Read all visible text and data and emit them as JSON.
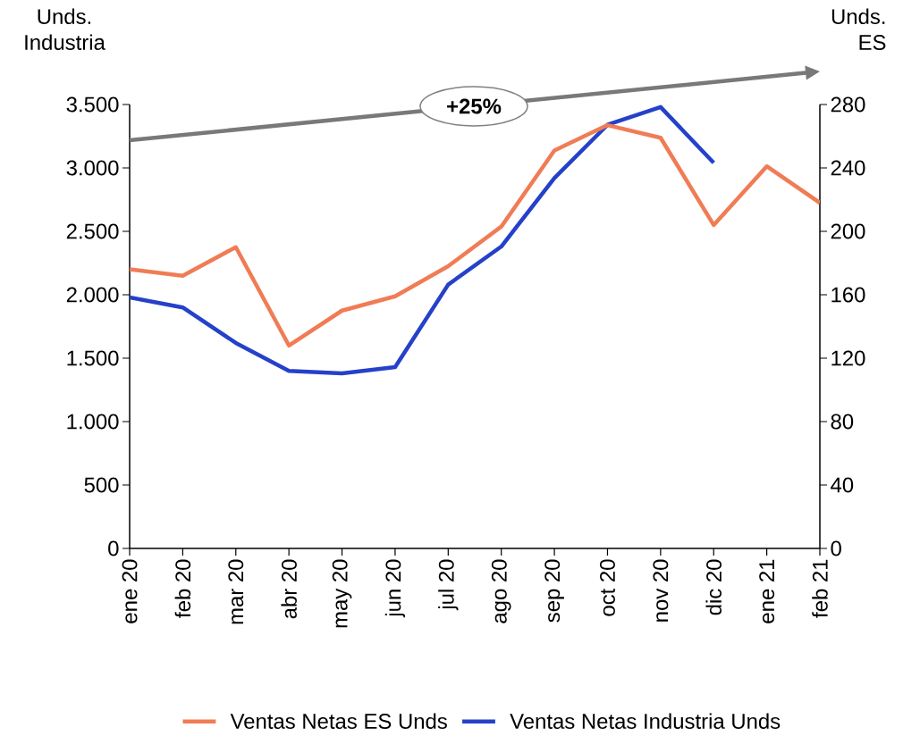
{
  "chart_data": {
    "type": "line",
    "ylabel": "Unds. Industria",
    "y2label": "Unds. ES",
    "categories": [
      "ene 20",
      "feb 20",
      "mar 20",
      "abr 20",
      "may 20",
      "jun 20",
      "jul 20",
      "ago 20",
      "sep 20",
      "oct 20",
      "nov 20",
      "dic 20",
      "ene 21",
      "feb 21"
    ],
    "series": [
      {
        "name": "Ventas Netas ES Unds",
        "color": "#f07c55",
        "axis": "y2",
        "values": [
          176,
          172,
          190,
          128,
          150,
          159,
          178,
          203,
          251,
          267,
          259,
          204,
          241,
          218
        ]
      },
      {
        "name": "Ventas Netas Industria Unds",
        "color": "#2541c9",
        "values": [
          1980,
          1900,
          1620,
          1400,
          1380,
          1430,
          2080,
          2380,
          2920,
          3340,
          3480,
          3040,
          null,
          null
        ]
      }
    ],
    "ylim": [
      0,
      3500
    ],
    "yticks": [
      {
        "value": 0,
        "label": "0"
      },
      {
        "value": 500,
        "label": "500"
      },
      {
        "value": 1000,
        "label": "1.000"
      },
      {
        "value": 1500,
        "label": "1.500"
      },
      {
        "value": 2000,
        "label": "2.000"
      },
      {
        "value": 2500,
        "label": "2.500"
      },
      {
        "value": 3000,
        "label": "3.000"
      },
      {
        "value": 3500,
        "label": "3.500"
      }
    ],
    "y2lim": [
      0,
      280
    ],
    "y2ticks": [
      0,
      40,
      80,
      120,
      160,
      200,
      240,
      280
    ],
    "annotations": [
      "+25%"
    ],
    "legend": "bottom",
    "grid": false,
    "marker": "none",
    "line_style": "solid"
  }
}
